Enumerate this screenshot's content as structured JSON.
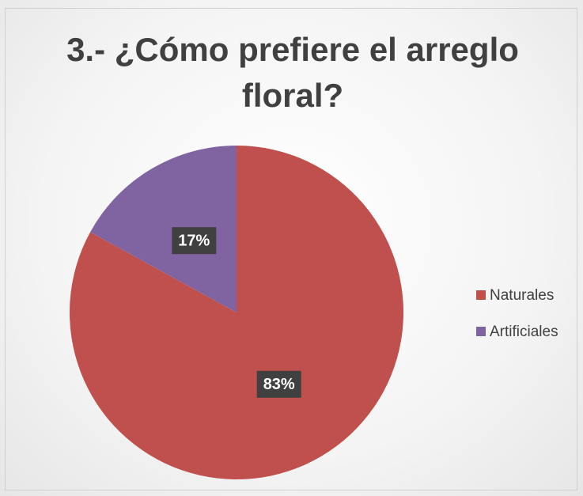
{
  "chart_data": {
    "type": "pie",
    "title": "3.- ¿Cómo prefiere el arreglo floral?",
    "categories": [
      "Naturales",
      "Artificiales"
    ],
    "values": [
      83,
      17
    ],
    "value_labels": [
      "83%",
      "17%"
    ],
    "colors": [
      "#c0504d",
      "#8064a2"
    ],
    "legend": "right"
  }
}
